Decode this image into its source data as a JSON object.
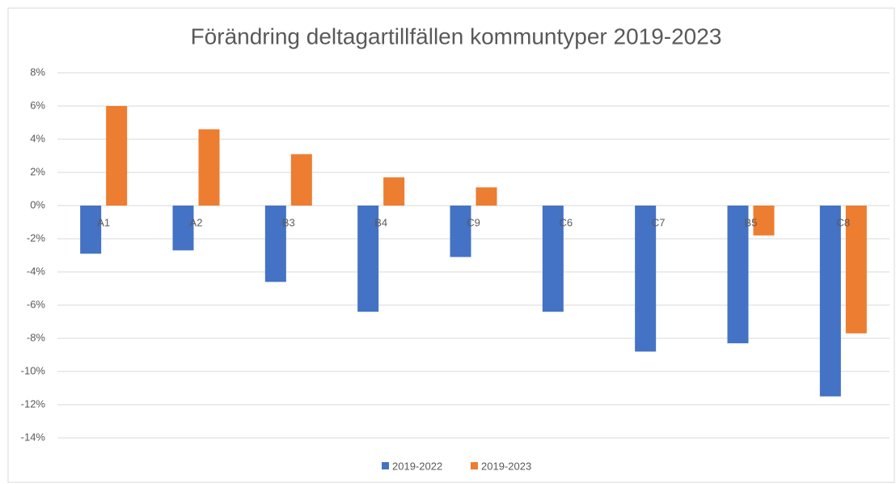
{
  "chart_data": {
    "type": "bar",
    "title": "Förändring deltagartillfällen kommuntyper 2019-2023",
    "categories": [
      "A1",
      "A2",
      "B3",
      "B4",
      "C9",
      "C6",
      "C7",
      "B5",
      "C8"
    ],
    "series": [
      {
        "name": "2019-2022",
        "color": "#4472c4",
        "values": [
          -2.9,
          -2.7,
          -4.6,
          -6.4,
          -3.1,
          -6.4,
          -8.8,
          -8.3,
          -11.5
        ]
      },
      {
        "name": "2019-2023",
        "color": "#ed7d31",
        "values": [
          6.0,
          4.6,
          3.1,
          1.7,
          1.1,
          0,
          0,
          -1.8,
          -7.7
        ]
      }
    ],
    "ylim": [
      -14,
      8
    ],
    "yticks": [
      {
        "value": -14,
        "label": "-14%"
      },
      {
        "value": -12,
        "label": "-12%"
      },
      {
        "value": -10,
        "label": "-10%"
      },
      {
        "value": -8,
        "label": "-8%"
      },
      {
        "value": -6,
        "label": "-6%"
      },
      {
        "value": -4,
        "label": "-4%"
      },
      {
        "value": -2,
        "label": "-2%"
      },
      {
        "value": 0,
        "label": "0%"
      },
      {
        "value": 2,
        "label": "2%"
      },
      {
        "value": 4,
        "label": "4%"
      },
      {
        "value": 6,
        "label": "6%"
      },
      {
        "value": 8,
        "label": "8%"
      }
    ],
    "grid": true,
    "legend": "bottom"
  }
}
